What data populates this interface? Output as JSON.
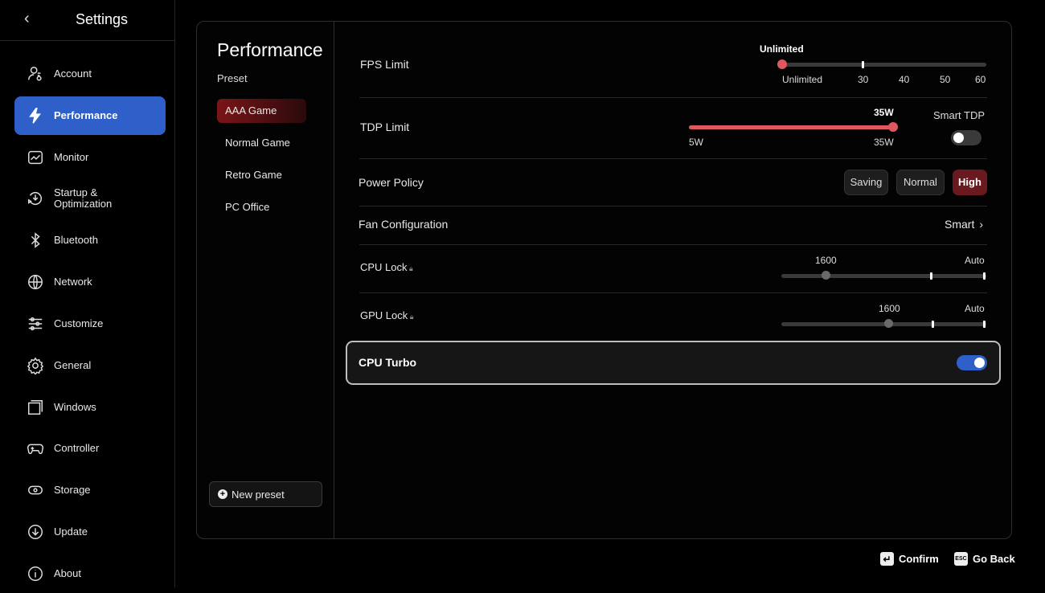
{
  "sidebar": {
    "title": "Settings",
    "items": [
      {
        "label": "Account",
        "icon": "account-icon"
      },
      {
        "label": "Performance",
        "icon": "lightning-icon",
        "active": true
      },
      {
        "label": "Monitor",
        "icon": "monitor-icon"
      },
      {
        "label": "Startup &\nOptimization",
        "label1": "Startup &",
        "label2": "Optimization",
        "icon": "startup-icon"
      },
      {
        "label": "Bluetooth",
        "icon": "bluetooth-icon"
      },
      {
        "label": "Network",
        "icon": "globe-icon"
      },
      {
        "label": "Customize",
        "icon": "sliders-icon"
      },
      {
        "label": "General",
        "icon": "gear-icon"
      },
      {
        "label": "Windows",
        "icon": "windows-icon"
      },
      {
        "label": "Controller",
        "icon": "gamepad-icon"
      },
      {
        "label": "Storage",
        "icon": "storage-icon"
      },
      {
        "label": "Update",
        "icon": "download-icon"
      },
      {
        "label": "About",
        "icon": "info-icon"
      }
    ]
  },
  "presets": {
    "title": "Performance",
    "subtitle": "Preset",
    "items": [
      "AAA Game",
      "Normal Game",
      "Retro Game",
      "PC Office"
    ],
    "selected": "AAA Game",
    "new_label": "New preset"
  },
  "settings": {
    "fps": {
      "label": "FPS Limit",
      "value": "Unlimited",
      "ticks": [
        "Unlimited",
        "30",
        "40",
        "50",
        "60"
      ]
    },
    "tdp": {
      "label": "TDP Limit",
      "value": "35W",
      "min": "5W",
      "max": "35W",
      "fill_percent": 100,
      "smart_label": "Smart TDP",
      "smart_on": false
    },
    "power": {
      "label": "Power Policy",
      "options": [
        "Saving",
        "Normal",
        "High"
      ],
      "selected": "High"
    },
    "fan": {
      "label": "Fan Configuration",
      "value": "Smart"
    },
    "cpu_lock": {
      "label": "CPU Lock",
      "value": "1600",
      "end": "Auto",
      "locked": true
    },
    "gpu_lock": {
      "label": "GPU Lock",
      "value": "1600",
      "end": "Auto",
      "locked": true
    },
    "cpu_turbo": {
      "label": "CPU Turbo",
      "on": true
    }
  },
  "footer": {
    "confirm": "Confirm",
    "go_back": "Go Back",
    "esc_key": "ESC"
  },
  "colors": {
    "accent_blue": "#2f5fc8",
    "accent_red": "#e0585f",
    "selected_red": "#6a1a1e"
  }
}
